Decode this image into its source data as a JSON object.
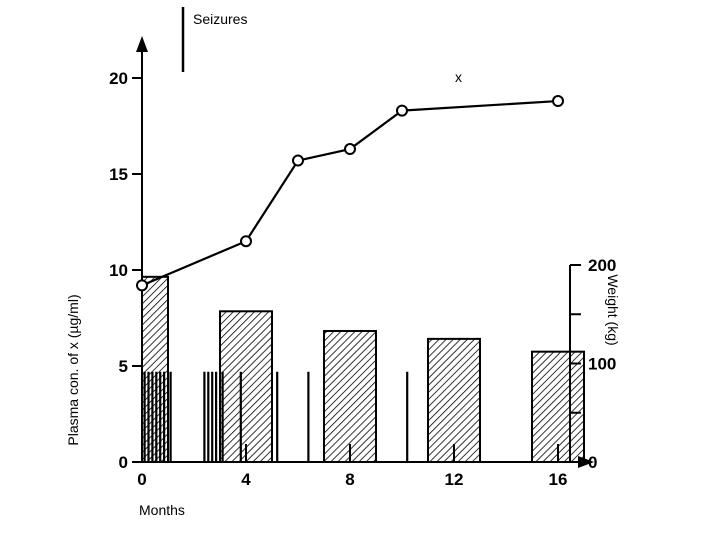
{
  "chart_data": {
    "type": "bar+line",
    "xlabel": "Months",
    "ylabel_left": "Plasma con. of x (µg/ml)",
    "ylabel_right": "Weight (kg)",
    "legend_label": "Seizures",
    "series_label": "x",
    "x_ticks": [
      "0",
      "4",
      "8",
      "12",
      "16"
    ],
    "xlim": [
      0,
      17
    ],
    "left_ticks": [
      "0",
      "5",
      "10",
      "15",
      "20"
    ],
    "ylim_left": [
      0,
      20
    ],
    "right_ticks": [
      "0",
      "100",
      "200"
    ],
    "ylim_right": [
      0,
      200
    ],
    "right_minor_ticks": [
      50,
      150
    ],
    "line_series": {
      "name": "x",
      "x": [
        0,
        4,
        6,
        8,
        10,
        16
      ],
      "y": [
        9.2,
        11.5,
        15.7,
        16.3,
        18.3,
        18.8
      ]
    },
    "weight_bars": {
      "x_start": [
        0,
        3,
        7,
        11,
        15
      ],
      "x_end": [
        1,
        5,
        9,
        13,
        17
      ],
      "values": [
        188,
        153,
        133,
        125,
        112
      ]
    },
    "seizure_events": [
      0.1,
      0.25,
      0.4,
      0.55,
      0.7,
      0.85,
      1.1,
      2.4,
      2.55,
      2.7,
      2.85,
      3.1,
      3.8,
      5.2,
      6.4,
      10.2
    ]
  }
}
